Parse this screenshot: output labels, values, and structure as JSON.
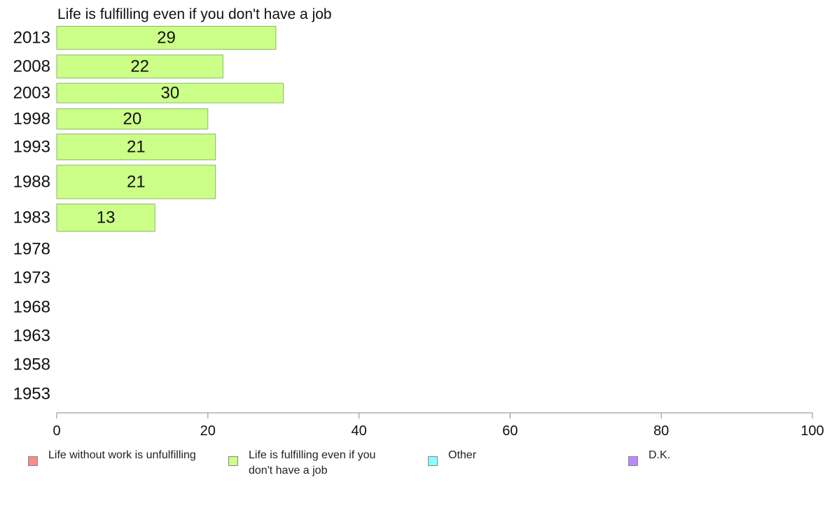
{
  "chart_data": {
    "type": "bar",
    "orientation": "horizontal",
    "title": "Life is fulfilling even if you don't have a job",
    "categories": [
      "2013",
      "2008",
      "2003",
      "1998",
      "1993",
      "1988",
      "1983",
      "1978",
      "1973",
      "1968",
      "1963",
      "1958",
      "1953"
    ],
    "series": [
      {
        "name": "Life is fulfilling even if you don't have a job",
        "color": "#ccff88",
        "values": [
          29,
          22,
          30,
          20,
          21,
          21,
          13,
          null,
          null,
          null,
          null,
          null,
          null
        ]
      }
    ],
    "xlim": [
      0,
      100
    ],
    "xticks": [
      0,
      20,
      40,
      60,
      80,
      100
    ],
    "grid": false,
    "legend": {
      "position": "bottom",
      "items": [
        {
          "label": "Life without work is unfulfilling",
          "color": "#ff8888"
        },
        {
          "label": "Life is fulfilling even if you don't have a job",
          "color": "#ccff88"
        },
        {
          "label": "Other",
          "color": "#88ffff"
        },
        {
          "label": "D.K.",
          "color": "#bb88ff"
        }
      ]
    }
  }
}
